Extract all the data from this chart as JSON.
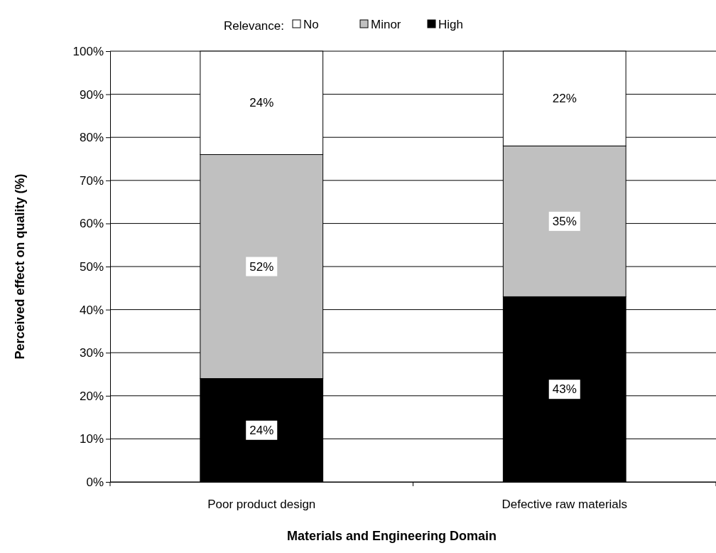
{
  "chart_data": {
    "type": "bar",
    "stacked": true,
    "xlabel": "Materials and Engineering Domain",
    "ylabel": "Perceived effect on quality (%)",
    "legend_title": "Relevance:",
    "legend": "top",
    "grid": "y",
    "categories": [
      "Poor product design",
      "Defective raw materials"
    ],
    "series": [
      {
        "name": "High",
        "color": "#000000",
        "values": [
          24,
          43
        ],
        "value_labels": [
          "24%",
          "43%"
        ]
      },
      {
        "name": "Minor",
        "color": "#c0c0c0",
        "values": [
          52,
          35
        ],
        "value_labels": [
          "52%",
          "35%"
        ]
      },
      {
        "name": "No",
        "color": "#ffffff",
        "values": [
          24,
          22
        ],
        "value_labels": [
          "24%",
          "22%"
        ]
      }
    ],
    "ylim": [
      0,
      100
    ],
    "yticks": [
      {
        "value": 0,
        "label": "0%"
      },
      {
        "value": 10,
        "label": "10%"
      },
      {
        "value": 20,
        "label": "20%"
      },
      {
        "value": 30,
        "label": "30%"
      },
      {
        "value": 40,
        "label": "40%"
      },
      {
        "value": 50,
        "label": "50%"
      },
      {
        "value": 60,
        "label": "60%"
      },
      {
        "value": 70,
        "label": "70%"
      },
      {
        "value": 80,
        "label": "80%"
      },
      {
        "value": 90,
        "label": "90%"
      },
      {
        "value": 100,
        "label": "100%"
      }
    ]
  }
}
